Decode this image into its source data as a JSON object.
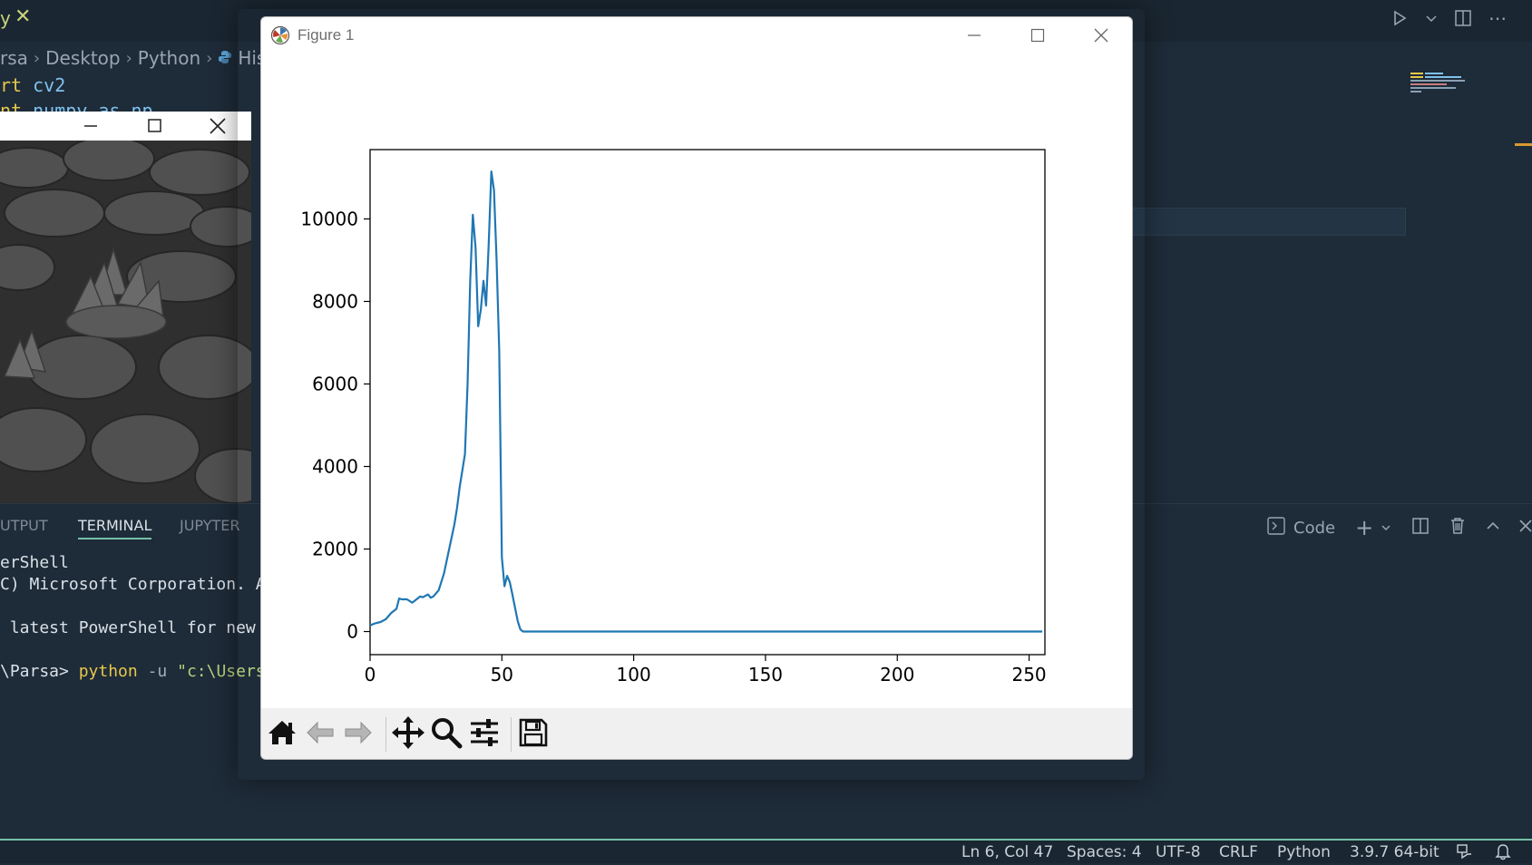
{
  "editor": {
    "tab_partial": "y",
    "breadcrumb": [
      "rsa",
      "Desktop",
      "Python",
      "His"
    ],
    "code_lines": [
      {
        "kw": "rt",
        "id": "cv2"
      },
      {
        "kw": "nt",
        "id": "numpy as np"
      }
    ]
  },
  "panel": {
    "tabs": [
      "UTPUT",
      "TERMINAL",
      "JUPYTER"
    ],
    "active_tab": "TERMINAL",
    "terminal_profile": "Code",
    "terminal": {
      "line1": "erShell",
      "line2": "C) Microsoft Corporation. A",
      "line3": " latest PowerShell for new",
      "prompt_path": "\\Parsa>",
      "cmd": "python",
      "flag": "-u",
      "arg": "\"c:\\Users"
    }
  },
  "statusbar": {
    "position": "Ln 6, Col 47",
    "spaces": "Spaces: 4",
    "encoding": "UTF-8",
    "eol": "CRLF",
    "language": "Python",
    "interpreter": "3.9.7 64-bit"
  },
  "figure": {
    "window_title": "Figure 1",
    "toolbar": [
      "home-icon",
      "back-icon",
      "forward-icon",
      "pan-icon",
      "zoom-icon",
      "configure-icon",
      "save-icon"
    ]
  },
  "chart_data": {
    "type": "line",
    "title": "",
    "xlabel": "",
    "ylabel": "",
    "xlim": [
      0,
      256
    ],
    "ylim": [
      -560,
      11680
    ],
    "xticks": [
      0,
      50,
      100,
      150,
      200,
      250
    ],
    "yticks": [
      0,
      2000,
      4000,
      6000,
      8000,
      10000
    ],
    "color": "#1f77b4",
    "grid": false,
    "x": [
      0,
      2,
      4,
      6,
      8,
      10,
      11,
      12,
      14,
      16,
      18,
      19,
      20,
      22,
      23,
      24,
      26,
      27,
      28,
      30,
      32,
      33,
      34,
      36,
      37,
      38,
      39,
      40,
      41,
      42,
      43,
      44,
      45,
      46,
      47,
      48,
      49,
      50,
      51,
      52,
      53,
      54,
      56,
      57,
      58,
      60,
      70,
      100,
      150,
      200,
      255
    ],
    "y": [
      150,
      200,
      230,
      300,
      450,
      550,
      800,
      780,
      780,
      700,
      800,
      850,
      830,
      900,
      820,
      850,
      1000,
      1200,
      1400,
      2000,
      2600,
      3000,
      3500,
      4300,
      6000,
      8500,
      10100,
      9300,
      7400,
      7800,
      8500,
      7900,
      9400,
      11150,
      10700,
      9000,
      6800,
      1800,
      1100,
      1350,
      1200,
      900,
      250,
      50,
      0,
      0,
      0,
      0,
      0,
      0,
      0
    ]
  }
}
